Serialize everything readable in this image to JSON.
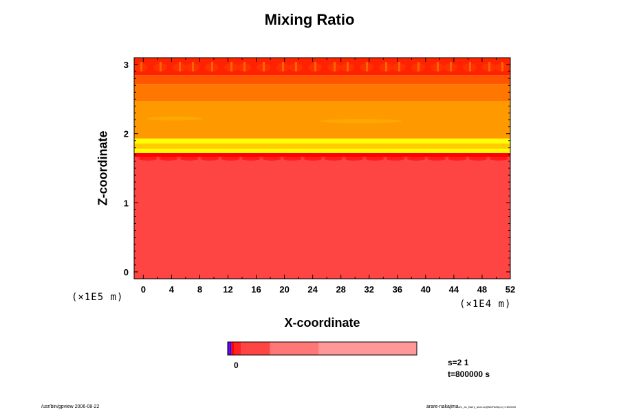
{
  "chart_data": {
    "type": "heatmap",
    "title": "Mixing Ratio",
    "xlabel": "X-coordinate",
    "ylabel": "Z-coordinate",
    "x_unit": "(×1E4 m)",
    "y_unit": "(×1E5 m)",
    "xlim": [
      -1.3,
      52
    ],
    "ylim": [
      -0.1,
      3.1
    ],
    "x_ticks": [
      "0",
      "4",
      "8",
      "12",
      "16",
      "20",
      "24",
      "28",
      "32",
      "36",
      "40",
      "44",
      "48",
      "52"
    ],
    "y_ticks": [
      "0",
      "1",
      "2",
      "3"
    ],
    "bands": [
      {
        "z0": -0.1,
        "z1": 1.66,
        "color": "#ff4444"
      },
      {
        "z0": 1.66,
        "z1": 1.72,
        "color": "#ff0000"
      },
      {
        "z0": 1.72,
        "z1": 1.78,
        "color": "#ffff00"
      },
      {
        "z0": 1.78,
        "z1": 1.86,
        "color": "#ffcc00"
      },
      {
        "z0": 1.86,
        "z1": 1.93,
        "color": "#ffff00"
      },
      {
        "z0": 1.93,
        "z1": 2.47,
        "color": "#ff9900"
      },
      {
        "z0": 2.47,
        "z1": 2.72,
        "color": "#ff7700"
      },
      {
        "z0": 2.72,
        "z1": 2.85,
        "color": "#ff5500"
      },
      {
        "z0": 2.85,
        "z1": 3.1,
        "color": "#ff2200"
      }
    ],
    "colorbar": {
      "segments": [
        {
          "color": "#6600cc",
          "weight": 2
        },
        {
          "color": "#3300ff",
          "weight": 3
        },
        {
          "color": "#ff0000",
          "weight": 4
        },
        {
          "color": "#ff2222",
          "weight": 9
        },
        {
          "color": "#ff4444",
          "weight": 39
        },
        {
          "color": "#ff7777",
          "weight": 66
        },
        {
          "color": "#ff9999",
          "weight": 132
        }
      ],
      "label": "0"
    }
  },
  "info": {
    "s_label": "s=2 1",
    "t_label": "t=800000 s"
  },
  "footer": {
    "left": "/usr/bin/gpview 2006-08-22",
    "right": "arare-nakajima",
    "right_small": "/21_a1_Barry_anal.nc@MixRtAll(x,z) t=800000"
  }
}
